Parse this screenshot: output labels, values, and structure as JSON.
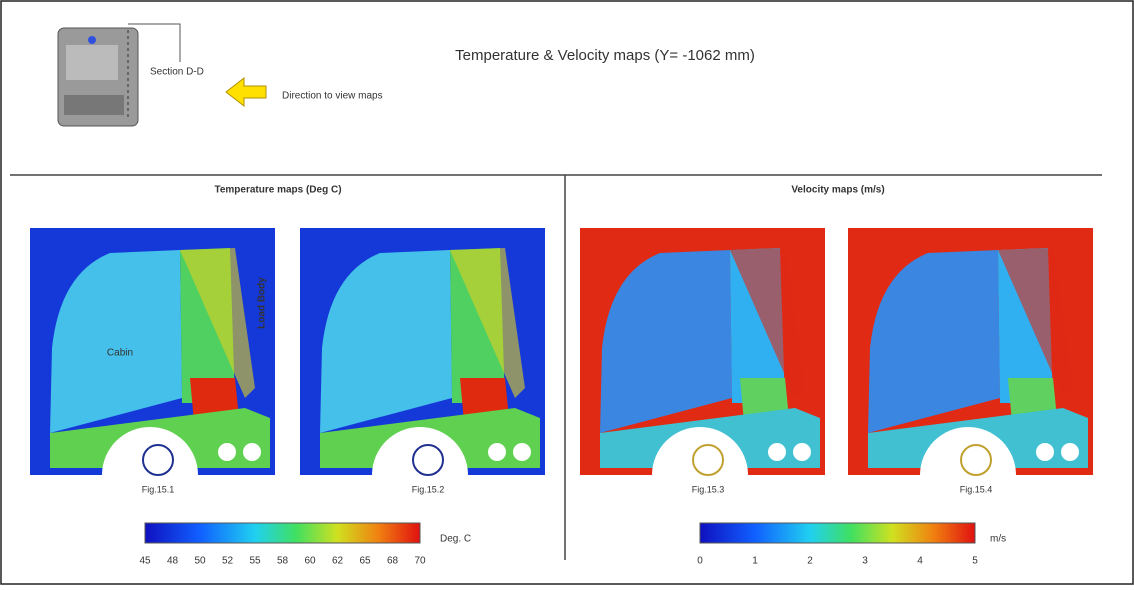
{
  "header": {
    "title": "Temperature & Velocity maps (Y= -1062 mm)",
    "section": "Section D-D",
    "direction": "Direction to view maps"
  },
  "panels": [
    {
      "title": "Temperature maps (Deg C)",
      "figures": [
        "Fig.15.1",
        "Fig.15.2"
      ],
      "labels": [
        "Cabin",
        "Load Body"
      ],
      "colorbar": {
        "ticks": [
          45,
          48,
          50,
          52,
          55,
          58,
          60,
          62,
          65,
          68,
          70
        ],
        "unit": "Deg. C"
      }
    },
    {
      "title": "Velocity maps (m/s)",
      "figures": [
        "Fig.15.3",
        "Fig.15.4"
      ],
      "colorbar": {
        "ticks": [
          0,
          1,
          2,
          3,
          4,
          5
        ],
        "unit": "m/s"
      }
    }
  ]
}
